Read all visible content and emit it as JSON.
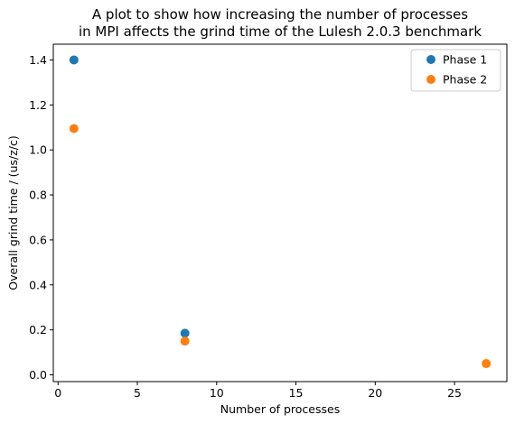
{
  "chart_data": {
    "type": "scatter",
    "title_lines": [
      "A plot to show how increasing the number of processes",
      "in MPI affects the grind time of the Lulesh 2.0.3 benchmark"
    ],
    "xlabel": "Number of processes",
    "ylabel": "Overall grind time / (us/z/c)",
    "xlim": [
      -0.3,
      28.3
    ],
    "ylim": [
      -0.03,
      1.47
    ],
    "xticks": [
      0,
      5,
      10,
      15,
      20,
      25
    ],
    "xtick_labels": [
      "0",
      "5",
      "10",
      "15",
      "20",
      "25"
    ],
    "yticks": [
      0.0,
      0.2,
      0.4,
      0.6,
      0.8,
      1.0,
      1.2,
      1.4
    ],
    "ytick_labels": [
      "0.0",
      "0.2",
      "0.4",
      "0.6",
      "0.8",
      "1.0",
      "1.2",
      "1.4"
    ],
    "grid": false,
    "legend_position": "top-right",
    "series": [
      {
        "name": "Phase 1",
        "color": "#1f77b4",
        "x": [
          1,
          8
        ],
        "y": [
          1.4,
          0.185
        ]
      },
      {
        "name": "Phase 2",
        "color": "#ff7f0e",
        "x": [
          1,
          8,
          27
        ],
        "y": [
          1.095,
          0.15,
          0.05
        ]
      }
    ]
  }
}
